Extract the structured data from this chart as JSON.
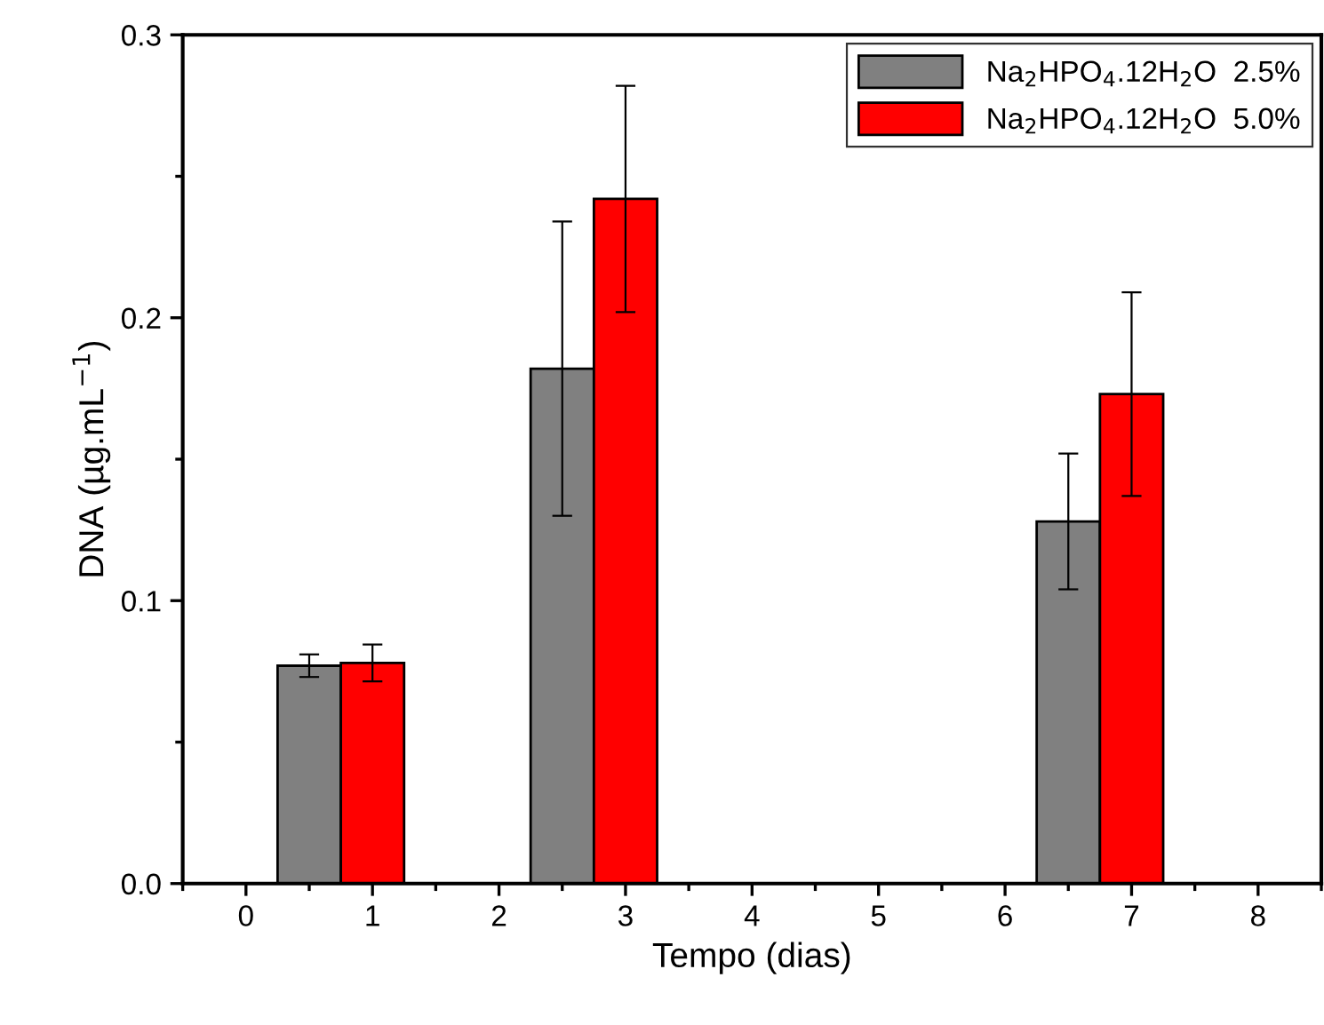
{
  "chart_data": {
    "type": "bar",
    "xlabel": "Tempo (dias)",
    "ylabel": "DNA (µg.mL$^{−1}$)",
    "xlim": [
      -0.5,
      8.5
    ],
    "xticks": [
      0,
      1,
      2,
      3,
      4,
      5,
      6,
      7,
      8
    ],
    "ylim": [
      0,
      0.3
    ],
    "yticks": [
      {
        "value": 0,
        "label": "0.0"
      },
      0.1,
      0.2,
      0.3
    ],
    "legend": "top right",
    "series": [
      {
        "name": "Na$_{2}$HPO$_{4}$.12H$_{2}$O  2.5%",
        "color": "#808080",
        "x": [
          0.5,
          2.5,
          6.5
        ],
        "values": [
          0.077,
          0.182,
          0.128
        ],
        "errors": [
          0.004,
          0.052,
          0.024
        ]
      },
      {
        "name": "Na$_{2}$HPO$_{4}$.12H$_{2}$O  5.0%",
        "color": "#ff0000",
        "x": [
          1,
          3,
          7
        ],
        "values": [
          0.078,
          0.242,
          0.173
        ],
        "errors": [
          0.0065,
          0.04,
          0.036
        ]
      }
    ]
  }
}
